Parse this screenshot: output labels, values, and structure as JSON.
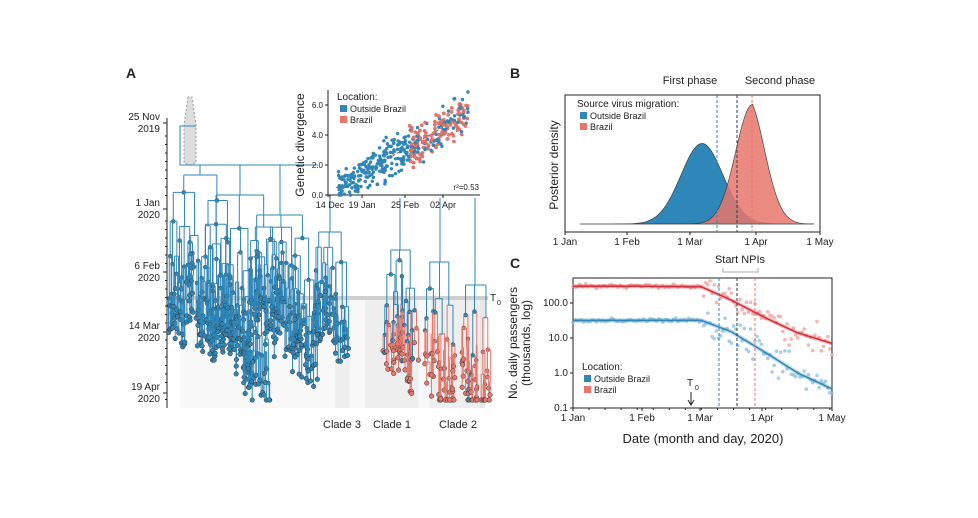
{
  "colors": {
    "outside": "#2f86b8",
    "brazil": "#e8766a",
    "dark": "#2b3a55",
    "grey": "#cccccc"
  },
  "chart_data": [
    {
      "panel": "A",
      "type": "tree",
      "panel_label": "A",
      "time_labels": [
        [
          "25 Nov",
          "2019"
        ],
        [
          "1 Jan",
          "2020"
        ],
        [
          "6 Feb",
          "2020"
        ],
        [
          "14 Mar",
          "2020"
        ],
        [
          "19 Apr",
          "2020"
        ]
      ],
      "t0_label": "T",
      "t0_sub": "0",
      "clades": [
        "Clade 3",
        "Clade 1",
        "Clade 2"
      ],
      "inset": {
        "type": "scatter",
        "ylabel": "Genetic divergence",
        "xticks": [
          "14 Dec",
          "19 Jan",
          "25 Feb",
          "02 Apr"
        ],
        "yticks": [
          "0.0",
          "2.0",
          "4.0",
          "6.0"
        ],
        "ylim": [
          0,
          7
        ],
        "legend_title": "Location:",
        "legend": [
          "Outside Brazil",
          "Brazil"
        ],
        "annotation": "r²=0.53"
      }
    },
    {
      "panel": "B",
      "type": "area",
      "panel_label": "B",
      "ylabel": "Posterior density",
      "xticks": [
        "1 Jan",
        "1 Feb",
        "1 Mar",
        "1 Apr",
        "1 May"
      ],
      "phase_labels": [
        "First phase",
        "Second phase"
      ],
      "legend_title": "Source virus migration:",
      "series": [
        {
          "name": "Outside Brazil",
          "peak_date": "2020-03-06",
          "sd_days": 10,
          "peak": 0.62
        },
        {
          "name": "Brazil",
          "peak_date": "2020-03-30",
          "sd_days": 8,
          "peak": 0.92
        }
      ]
    },
    {
      "panel": "C",
      "type": "line",
      "panel_label": "C",
      "scale": "log",
      "ylabel": [
        "No. daily passengers",
        "(thousands, log)"
      ],
      "xlabel": "Date (month and day, 2020)",
      "xticks": [
        "1 Jan",
        "1 Feb",
        "1 Mar",
        "1 Apr",
        "1 May"
      ],
      "yticks": [
        "0.1",
        "1.0",
        "10.0",
        "100.0"
      ],
      "ylim": [
        0.1,
        500
      ],
      "annotation": "Start NPIs",
      "t0_label": "T",
      "t0_sub": "0",
      "legend_title": "Location:",
      "series": [
        {
          "name": "Outside Brazil",
          "x": [
            "2020-01-01",
            "2020-02-01",
            "2020-03-01",
            "2020-03-15",
            "2020-04-01",
            "2020-04-15",
            "2020-05-01"
          ],
          "y": [
            32,
            32,
            32,
            15,
            3.5,
            1,
            0.35
          ]
        },
        {
          "name": "Brazil",
          "x": [
            "2020-01-01",
            "2020-02-01",
            "2020-03-01",
            "2020-03-15",
            "2020-04-01",
            "2020-04-15",
            "2020-05-01"
          ],
          "y": [
            300,
            300,
            290,
            120,
            35,
            14,
            7
          ]
        }
      ]
    }
  ]
}
